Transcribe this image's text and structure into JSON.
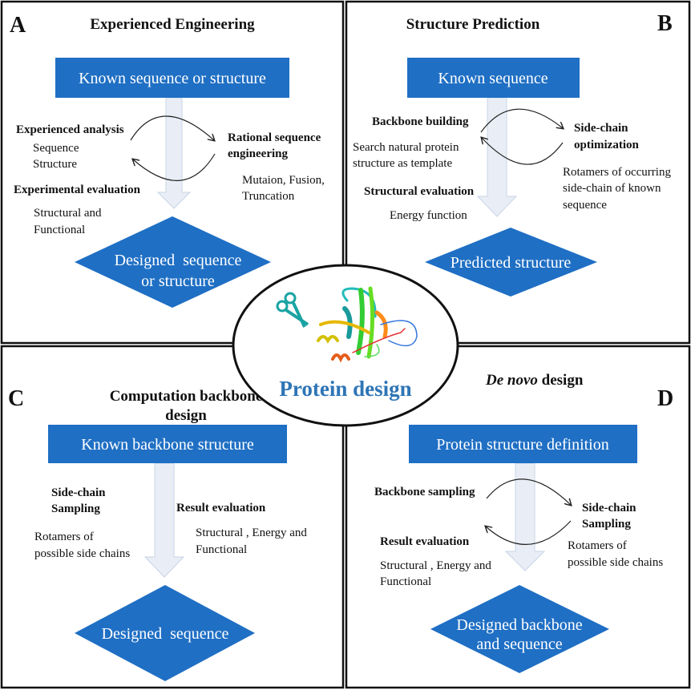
{
  "center": {
    "title": "Protein design",
    "title_color": "#2e75b6",
    "icons": [
      "scissors-icon",
      "protein-ribbon-structure"
    ]
  },
  "colors": {
    "box_fill": "#1f6fc4",
    "flow_arrow": "#e9eef6"
  },
  "panel_a": {
    "letter": "A",
    "title": "Experienced Engineering",
    "start_box": "Known sequence or structure",
    "left_heading_1": "Experienced analysis",
    "left_lines_1": [
      "Sequence",
      "Structure"
    ],
    "left_heading_2": "Experimental evaluation",
    "left_lines_2": [
      "Structural and",
      "Functional"
    ],
    "right_heading": [
      "Rational sequence",
      "engineering"
    ],
    "right_lines": [
      "Mutaion, Fusion,",
      "Truncation"
    ],
    "end_diamond": [
      "Designed  sequence",
      "or structure"
    ]
  },
  "panel_b": {
    "letter": "B",
    "title": "Structure Prediction",
    "start_box": "Known sequence",
    "left_heading_1": "Backbone building",
    "left_lines_1": [
      "Search natural protein",
      "structure as template"
    ],
    "left_heading_2": "Structural evaluation",
    "left_lines_2": [
      "Energy function"
    ],
    "right_heading": [
      "Side-chain",
      "optimization"
    ],
    "right_lines": [
      "Rotamers of occurring",
      "side-chain of known",
      "sequence"
    ],
    "end_diamond": [
      "Predicted structure"
    ]
  },
  "panel_c": {
    "letter": "C",
    "title": [
      "Computation backbone",
      "design"
    ],
    "start_box": "Known backbone structure",
    "left_heading": [
      "Side-chain",
      "Sampling"
    ],
    "left_lines": [
      "Rotamers of",
      "possible side chains"
    ],
    "right_heading": "Result evaluation",
    "right_lines": [
      "Structural , Energy and",
      "Functional"
    ],
    "end_diamond": [
      "Designed  sequence"
    ]
  },
  "panel_d": {
    "letter": "D",
    "title_italic": "De novo",
    "title_rest": " design",
    "start_box": "Protein structure definition",
    "left_heading_1": "Backbone sampling",
    "left_heading_2": "Result evaluation",
    "left_lines_2": [
      "Structural , Energy and",
      "Functional"
    ],
    "right_heading": [
      "Side-chain",
      "Sampling"
    ],
    "right_lines": [
      "Rotamers of",
      "possible side chains"
    ],
    "end_diamond": [
      "Designed backbone",
      "and sequence"
    ]
  }
}
